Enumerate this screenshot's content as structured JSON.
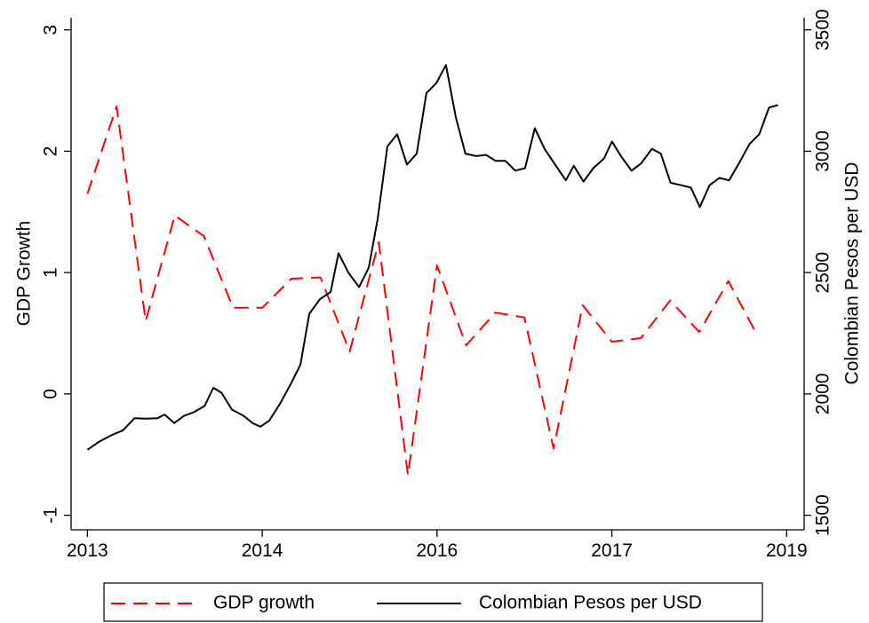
{
  "chart_data": {
    "type": "line",
    "y_label": "GDP Growth",
    "y2_label": "Colombian Pesos per USD",
    "xlim": [
      2012.86,
      2019.15
    ],
    "xticks": [
      2013,
      {
        "value": 2014.5,
        "label": "2014"
      },
      2016,
      {
        "value": 2017.5,
        "label": "2017"
      },
      2019
    ],
    "ylim": [
      -1.12,
      3.1
    ],
    "yticks": [
      -1,
      0,
      1,
      2,
      3
    ],
    "y2lim": [
      1440,
      3550
    ],
    "y2ticks": [
      1500,
      2000,
      2500,
      3000,
      3500
    ],
    "grid": false,
    "legend": "bottom",
    "series": [
      {
        "name": "GDP growth",
        "color": "#ff0000",
        "dashed": true,
        "x": [
          2013,
          2013.25,
          2013.5,
          2013.75,
          2014,
          2014.25,
          2014.5,
          2014.75,
          2015,
          2015.25,
          2015.5,
          2015.75,
          2016,
          2016.25,
          2016.5,
          2016.75,
          2017,
          2017.25,
          2017.5,
          2017.75,
          2018,
          2018.25,
          2018.5,
          2018.75
        ],
        "values": [
          1.65,
          2.37,
          0.6,
          1.47,
          1.3,
          0.71,
          0.71,
          0.95,
          0.96,
          0.35,
          1.25,
          -0.67,
          1.06,
          0.4,
          0.67,
          0.63,
          -0.45,
          0.73,
          0.43,
          0.46,
          0.77,
          0.51,
          0.93,
          0.48
        ]
      },
      {
        "name": "Colombian Pesos per USD",
        "color": "#000000",
        "dashed": false,
        "axis": "y2",
        "x": [
          2013,
          2013.107,
          2013.206,
          2013.305,
          2013.404,
          2013.503,
          2013.602,
          2013.663,
          2013.746,
          2013.83,
          2013.914,
          2014.005,
          2014.081,
          2014.15,
          2014.241,
          2014.34,
          2014.417,
          2014.485,
          2014.561,
          2014.653,
          2014.744,
          2014.828,
          2014.904,
          2014.995,
          2015.087,
          2015.155,
          2015.239,
          2015.331,
          2015.414,
          2015.49,
          2015.574,
          2015.658,
          2015.742,
          2015.826,
          2015.909,
          2015.993,
          2016.077,
          2016.161,
          2016.244,
          2016.336,
          2016.42,
          2016.503,
          2016.587,
          2016.671,
          2016.755,
          2016.839,
          2016.922,
          2017.006,
          2017.105,
          2017.174,
          2017.257,
          2017.341,
          2017.433,
          2017.501,
          2017.585,
          2017.669,
          2017.752,
          2017.844,
          2017.92,
          2018.004,
          2018.095,
          2018.179,
          2018.255,
          2018.339,
          2018.423,
          2018.506,
          2018.59,
          2018.682,
          2018.765,
          2018.849,
          2018.925
        ],
        "values": [
          1770,
          1805,
          1830,
          1850,
          1900,
          1898,
          1900,
          1915,
          1880,
          1910,
          1925,
          1950,
          2025,
          2005,
          1935,
          1910,
          1880,
          1865,
          1890,
          1960,
          2040,
          2120,
          2330,
          2390,
          2420,
          2580,
          2500,
          2440,
          2520,
          2720,
          3020,
          3070,
          2945,
          2990,
          3240,
          3280,
          3355,
          3140,
          2990,
          2980,
          2985,
          2960,
          2960,
          2920,
          2930,
          3095,
          3010,
          2950,
          2880,
          2940,
          2875,
          2930,
          2970,
          3040,
          2975,
          2920,
          2950,
          3010,
          2990,
          2870,
          2860,
          2850,
          2770,
          2860,
          2890,
          2880,
          2950,
          3030,
          3070,
          3180,
          3190
        ]
      }
    ]
  }
}
